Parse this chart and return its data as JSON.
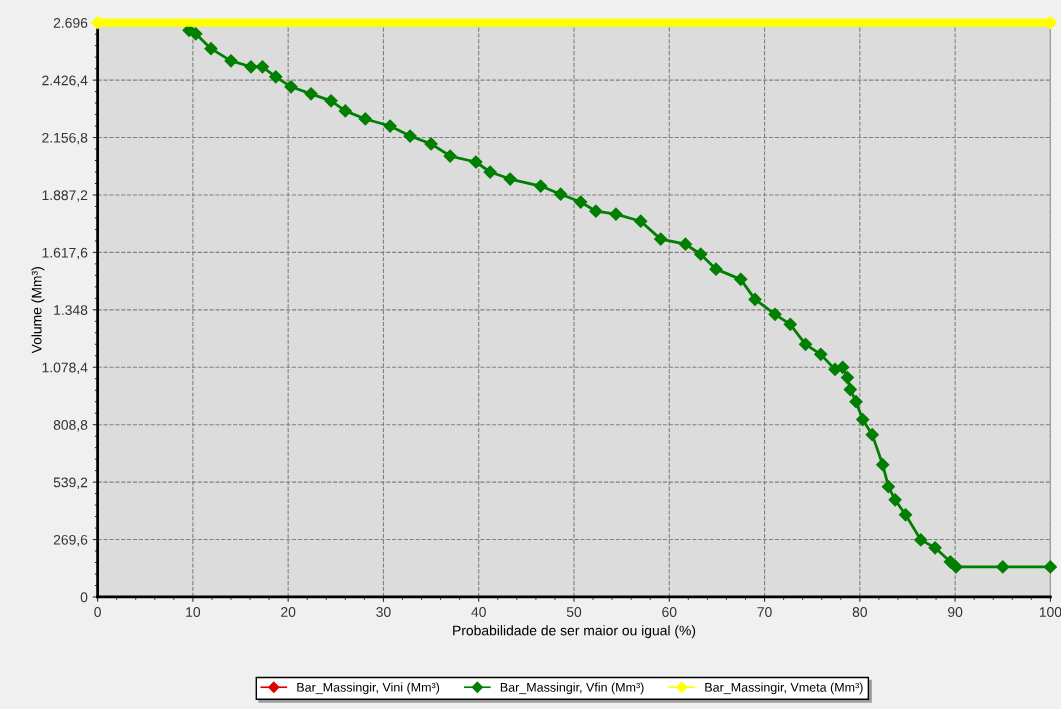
{
  "chart_data": {
    "type": "line",
    "xlabel": "Probabilidade de ser maior ou igual (%)",
    "ylabel": "Volume (Mm³)",
    "xlim": [
      0,
      100
    ],
    "xticks": [
      0,
      10,
      20,
      30,
      40,
      50,
      60,
      70,
      80,
      90,
      100
    ],
    "ylim": [
      0,
      2696
    ],
    "yticks": [
      0,
      {
        "value": 269.6,
        "label": "269,6"
      },
      {
        "value": 539.2,
        "label": "539,2"
      },
      {
        "value": 808.8,
        "label": "808,8"
      },
      {
        "value": 1078.4,
        "label": "1.078,4"
      },
      {
        "value": 1348,
        "label": "1.348"
      },
      {
        "value": 1617.6,
        "label": "1.617,6"
      },
      {
        "value": 1887.2,
        "label": "1.887,2"
      },
      {
        "value": 2156.8,
        "label": "2.156,8"
      },
      {
        "value": 2426.4,
        "label": "2.426,4"
      },
      {
        "value": 2696,
        "label": "2.696"
      }
    ],
    "grid": true,
    "legend": "bottom",
    "marker": "diamond",
    "line_style": "solid",
    "series": [
      {
        "name": "Bar_Massingir, Vini (Mm³)",
        "color": "#e00000",
        "values": [
          null
        ]
      },
      {
        "name": "Bar_Massingir, Vfin (Mm³)",
        "color": "#007f00",
        "x": [
          9.6,
          10.3,
          11.9,
          14.0,
          16.1,
          17.3,
          18.7,
          20.3,
          22.4,
          24.5,
          26.0,
          28.1,
          30.7,
          32.8,
          35.0,
          37.0,
          39.7,
          41.2,
          43.3,
          46.5,
          48.6,
          50.7,
          52.3,
          54.4,
          57.0,
          59.1,
          61.7,
          63.3,
          64.9,
          67.5,
          69.0,
          71.1,
          72.7,
          74.3,
          75.9,
          77.4,
          78.2,
          78.7,
          79.0,
          79.6,
          80.3,
          81.3,
          82.4,
          83.0,
          83.7,
          84.8,
          86.4,
          87.9,
          89.5,
          90.1,
          95.0,
          100
        ],
        "values": [
          2660,
          2644,
          2574,
          2517,
          2489,
          2489,
          2442,
          2395,
          2362,
          2329,
          2282,
          2244,
          2211,
          2164,
          2127,
          2070,
          2042,
          1995,
          1962,
          1929,
          1891,
          1854,
          1811,
          1797,
          1764,
          1680,
          1656,
          1609,
          1539,
          1491,
          1397,
          1327,
          1280,
          1186,
          1139,
          1068,
          1078,
          1030,
          974,
          917,
          833,
          762,
          621,
          518,
          456,
          386,
          268,
          231,
          165,
          141,
          141,
          141
        ]
      },
      {
        "name": "Bar_Massingir, Vmeta (Mm³)",
        "color": "#ffff00",
        "x": [
          0,
          100
        ],
        "values": [
          2696,
          2696
        ]
      }
    ]
  }
}
